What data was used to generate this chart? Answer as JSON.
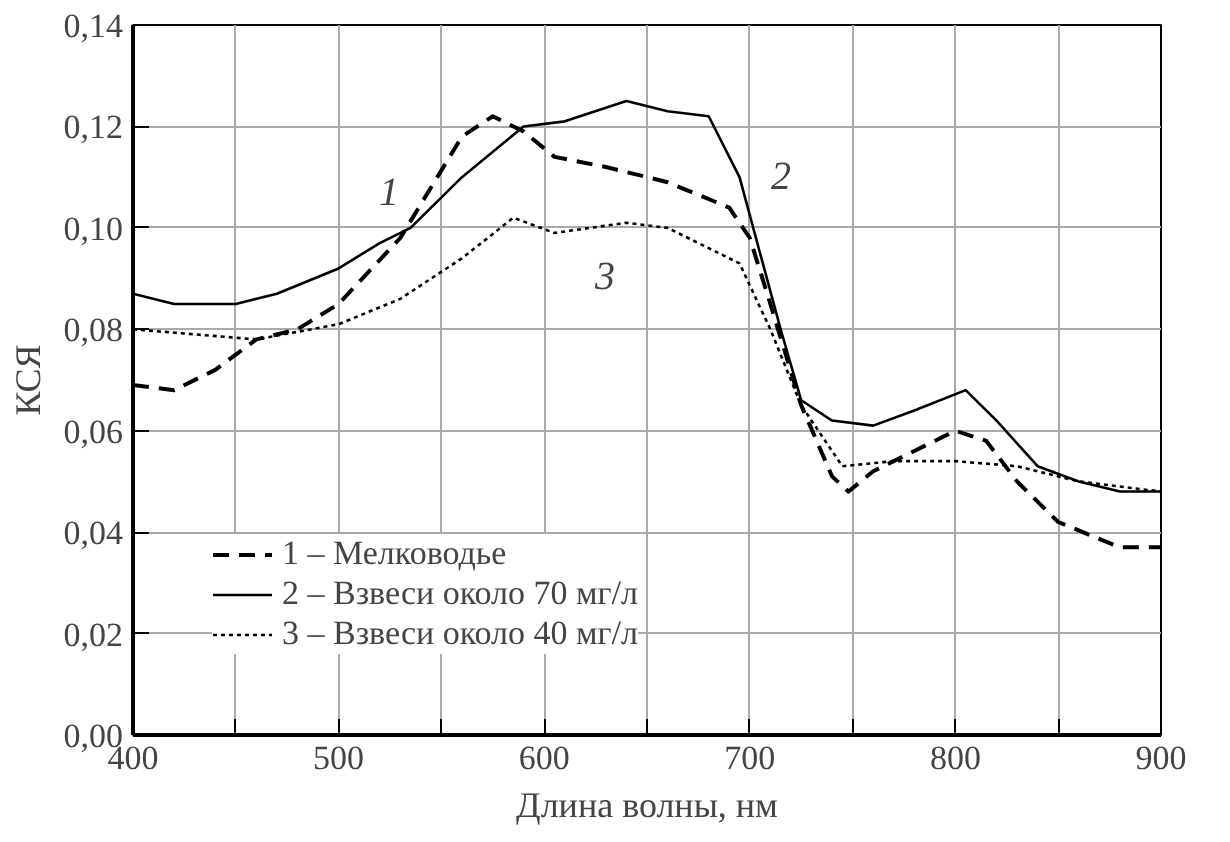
{
  "chart_data": {
    "type": "line",
    "xlabel": "Длина волны, нм",
    "ylabel": "КСЯ",
    "xlim": [
      400,
      900
    ],
    "ylim": [
      0,
      0.14
    ],
    "xticks": [
      400,
      {
        "value": 450,
        "label": null
      },
      500,
      {
        "value": 550,
        "label": null
      },
      600,
      {
        "value": 650,
        "label": null
      },
      700,
      {
        "value": 750,
        "label": null
      },
      800,
      {
        "value": 850,
        "label": null
      },
      900
    ],
    "yticks": [
      {
        "value": 0,
        "label": "0,00"
      },
      {
        "value": 0.02,
        "label": "0,02"
      },
      {
        "value": 0.04,
        "label": "0,04"
      },
      {
        "value": 0.06,
        "label": "0,06"
      },
      {
        "value": 0.08,
        "label": "0,08"
      },
      {
        "value": 0.1,
        "label": "0,10"
      },
      {
        "value": 0.12,
        "label": "0,12"
      },
      {
        "value": 0.14,
        "label": "0,14"
      }
    ],
    "grid": true,
    "legend": "bottom left",
    "marker": "none",
    "series": [
      {
        "name": "1 – Мелководье",
        "color": "#000000",
        "line_style": "dashed",
        "x": [
          400,
          420,
          440,
          460,
          480,
          500,
          530,
          545,
          560,
          575,
          590,
          605,
          630,
          660,
          690,
          700,
          710,
          725,
          740,
          748,
          760,
          780,
          800,
          815,
          830,
          850,
          880,
          900
        ],
        "values": [
          0.069,
          0.068,
          0.072,
          0.078,
          0.08,
          0.085,
          0.098,
          0.108,
          0.118,
          0.122,
          0.119,
          0.114,
          0.112,
          0.109,
          0.104,
          0.098,
          0.085,
          0.065,
          0.051,
          0.048,
          0.052,
          0.056,
          0.06,
          0.058,
          0.05,
          0.042,
          0.037,
          0.037
        ]
      },
      {
        "name": "2 – Взвеси около 70 мг/л",
        "color": "#000000",
        "line_style": "solid",
        "x": [
          400,
          420,
          450,
          470,
          500,
          520,
          535,
          560,
          590,
          610,
          640,
          660,
          680,
          695,
          705,
          715,
          725,
          740,
          760,
          780,
          805,
          820,
          840,
          860,
          880,
          900
        ],
        "values": [
          0.087,
          0.085,
          0.085,
          0.087,
          0.092,
          0.097,
          0.1,
          0.11,
          0.12,
          0.121,
          0.125,
          0.123,
          0.122,
          0.11,
          0.095,
          0.08,
          0.066,
          0.062,
          0.061,
          0.064,
          0.068,
          0.062,
          0.053,
          0.05,
          0.048,
          0.048
        ]
      },
      {
        "name": "3 – Взвеси около 40 мг/л",
        "color": "#000000",
        "line_style": "dotted",
        "x": [
          400,
          430,
          460,
          500,
          530,
          560,
          585,
          605,
          640,
          660,
          680,
          695,
          710,
          725,
          745,
          770,
          800,
          830,
          860,
          900
        ],
        "values": [
          0.08,
          0.079,
          0.078,
          0.081,
          0.086,
          0.094,
          0.102,
          0.099,
          0.101,
          0.1,
          0.096,
          0.093,
          0.08,
          0.065,
          0.053,
          0.054,
          0.054,
          0.053,
          0.05,
          0.048
        ]
      }
    ],
    "annotations": [
      "1",
      "2",
      "3"
    ]
  }
}
